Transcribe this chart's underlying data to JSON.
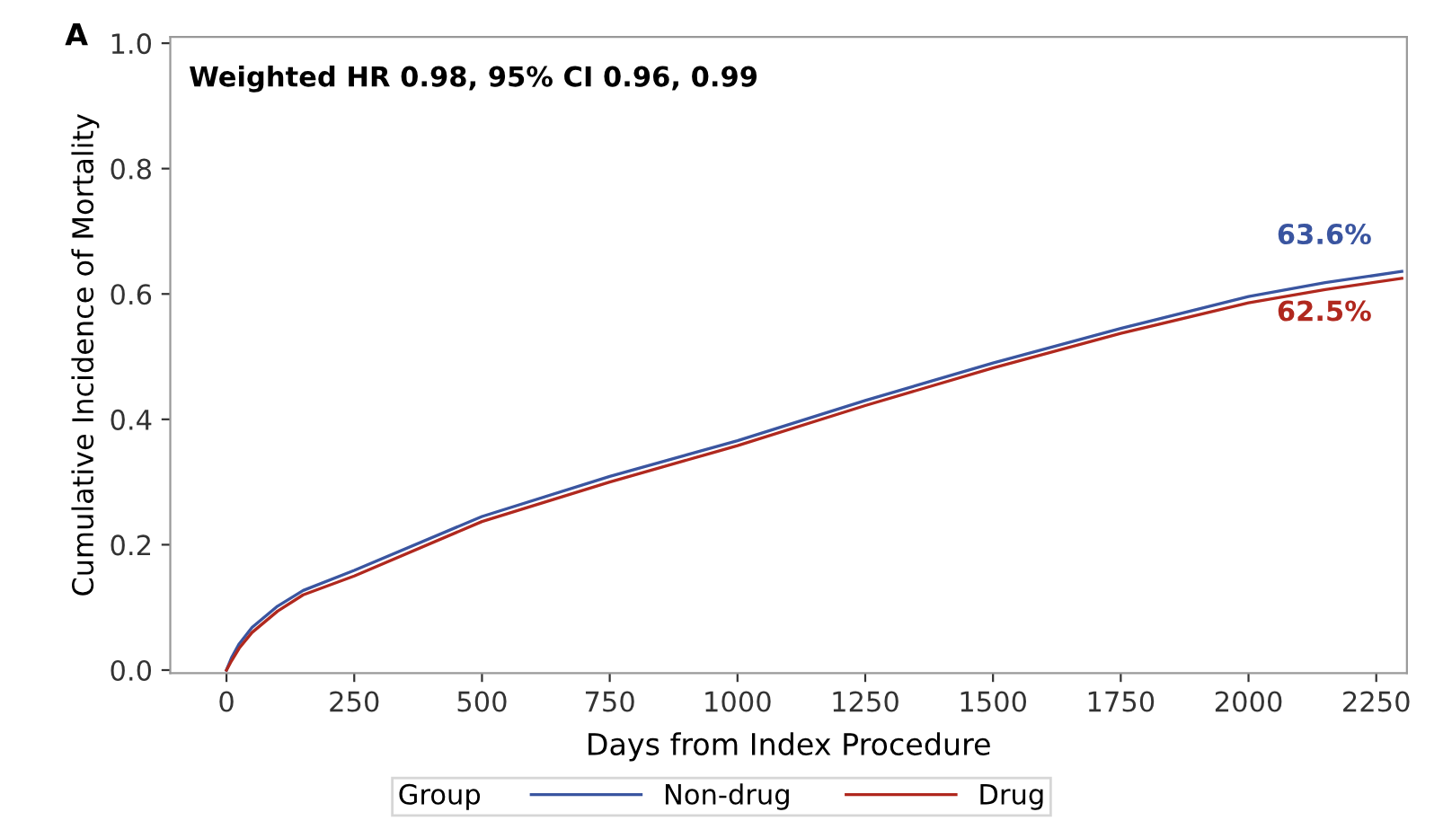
{
  "chart_data": {
    "type": "line",
    "xlabel": "Days from Index Procedure",
    "ylabel": "Cumulative Incidence of Mortality",
    "legend_title": "Group",
    "legend": "bottom",
    "grid": false,
    "marker": "none",
    "line_style": "solid",
    "xlim": [
      -110,
      2310
    ],
    "xticks": [
      0,
      250,
      500,
      750,
      1000,
      1250,
      1500,
      1750,
      2000,
      2250
    ],
    "ylim": [
      -0.005,
      1.01
    ],
    "yticks": [
      {
        "value": 0,
        "label": "0.0"
      },
      {
        "value": 0.2,
        "label": "0.2"
      },
      {
        "value": 0.4,
        "label": "0.4"
      },
      {
        "value": 0.6,
        "label": "0.6"
      },
      {
        "value": 0.8,
        "label": "0.8"
      },
      {
        "value": 1.0,
        "label": "1.0"
      }
    ],
    "x": [
      0,
      10,
      25,
      50,
      100,
      150,
      250,
      500,
      750,
      1000,
      1250,
      1500,
      1750,
      2000,
      2150,
      2300
    ],
    "series": [
      {
        "name": "Non-drug",
        "color": "#3a55a0",
        "values": [
          0,
          0.02,
          0.042,
          0.068,
          0.102,
          0.127,
          0.159,
          0.245,
          0.309,
          0.366,
          0.43,
          0.49,
          0.545,
          0.596,
          0.618,
          0.636
        ]
      },
      {
        "name": "Drug",
        "color": "#b0281e",
        "values": [
          0,
          0.015,
          0.035,
          0.06,
          0.094,
          0.12,
          0.15,
          0.237,
          0.3,
          0.358,
          0.422,
          0.482,
          0.537,
          0.586,
          0.607,
          0.625
        ]
      }
    ],
    "annotations": [
      "A",
      "Weighted HR 0.98, 95% CI 0.96, 0.99",
      {
        "text": "63.6%",
        "x": 2300,
        "y": 0.636
      },
      {
        "text": "62.5%",
        "x": 2300,
        "y": 0.625
      }
    ]
  }
}
